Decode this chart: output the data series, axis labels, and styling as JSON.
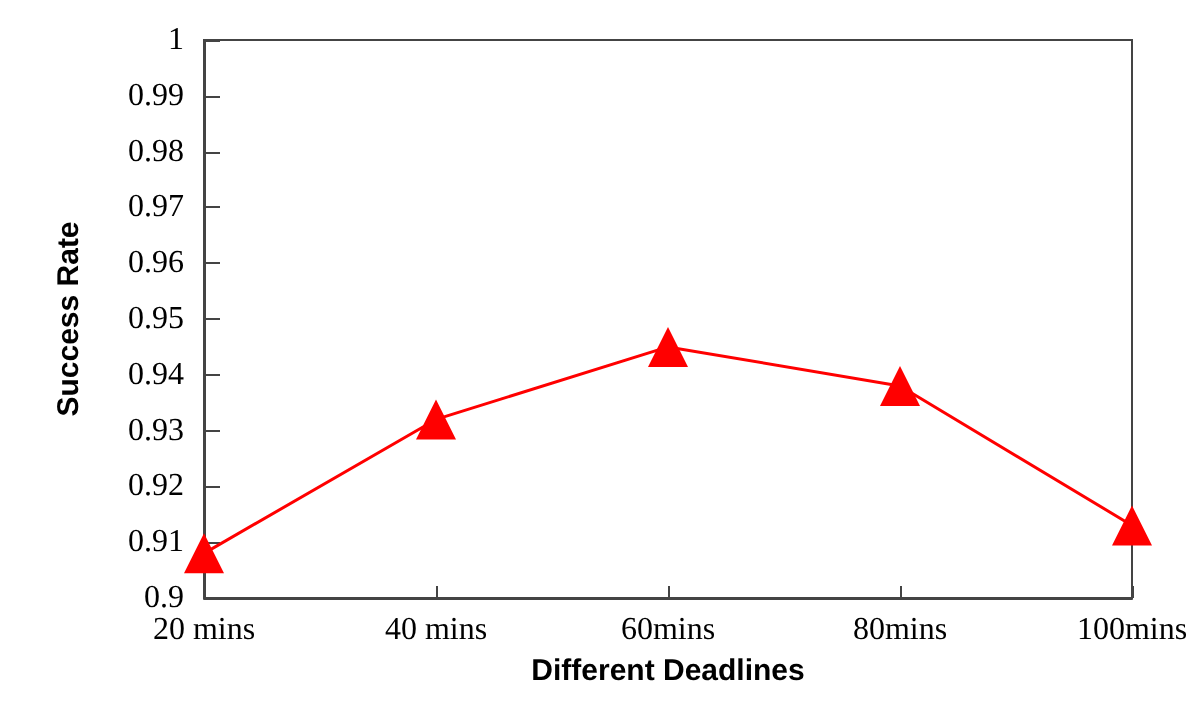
{
  "chart_data": {
    "type": "line",
    "xlabel": "Different Deadlines",
    "ylabel": "Success Rate",
    "categories": [
      "20 mins",
      "40 mins",
      "60mins",
      "80mins",
      "100mins"
    ],
    "series": [
      {
        "color": "#ff0000",
        "values": [
          0.908,
          0.932,
          0.945,
          0.938,
          0.913
        ]
      }
    ],
    "ylim": [
      0.9,
      1
    ],
    "yticks": [
      0.9,
      0.91,
      0.92,
      0.93,
      0.94,
      0.95,
      0.96,
      0.97,
      0.98,
      0.99,
      1
    ],
    "marker": "triangle",
    "line_style": "solid"
  }
}
